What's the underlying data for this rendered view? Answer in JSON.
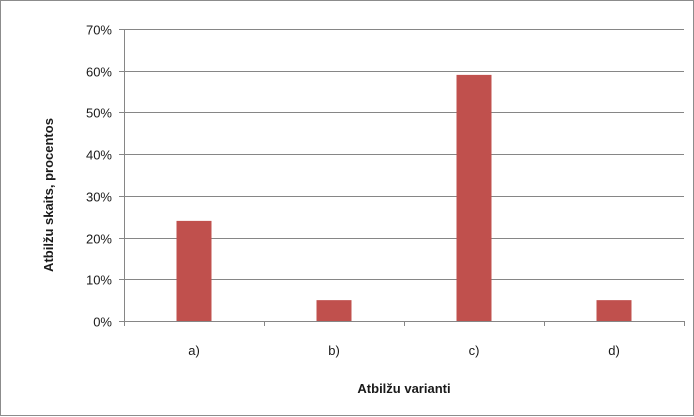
{
  "chart_data": {
    "type": "bar",
    "title": "",
    "xlabel": "Atbilžu varianti",
    "ylabel": "Atbilžu skaits,  procentos",
    "categories": [
      "a)",
      "b)",
      "c)",
      "d)"
    ],
    "values": [
      24,
      5,
      59,
      5
    ],
    "ylim": [
      0,
      70
    ],
    "ytick_step": 10,
    "ytick_suffix": "%",
    "grid": true,
    "legend": "none",
    "bar_color": "#c0504d",
    "grid_color": "#868686"
  }
}
